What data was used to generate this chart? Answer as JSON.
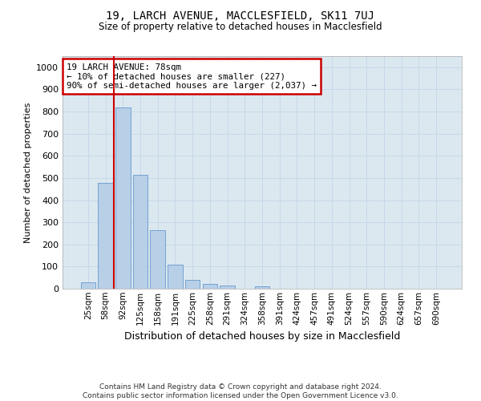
{
  "title": "19, LARCH AVENUE, MACCLESFIELD, SK11 7UJ",
  "subtitle": "Size of property relative to detached houses in Macclesfield",
  "xlabel": "Distribution of detached houses by size in Macclesfield",
  "ylabel": "Number of detached properties",
  "footer_line1": "Contains HM Land Registry data © Crown copyright and database right 2024.",
  "footer_line2": "Contains public sector information licensed under the Open Government Licence v3.0.",
  "bar_labels": [
    "25sqm",
    "58sqm",
    "92sqm",
    "125sqm",
    "158sqm",
    "191sqm",
    "225sqm",
    "258sqm",
    "291sqm",
    "324sqm",
    "358sqm",
    "391sqm",
    "424sqm",
    "457sqm",
    "491sqm",
    "524sqm",
    "557sqm",
    "590sqm",
    "624sqm",
    "657sqm",
    "690sqm"
  ],
  "bar_values": [
    30,
    478,
    820,
    515,
    265,
    110,
    40,
    20,
    13,
    0,
    10,
    0,
    0,
    0,
    0,
    0,
    0,
    0,
    0,
    0,
    0
  ],
  "bar_color": "#b8cfe8",
  "bar_edge_color": "#6699cc",
  "grid_color": "#c8d8ea",
  "bg_color": "#dce8f0",
  "annotation_box_text": "19 LARCH AVENUE: 78sqm\n← 10% of detached houses are smaller (227)\n90% of semi-detached houses are larger (2,037) →",
  "annotation_box_color": "#cc0000",
  "vline_x": 1.5,
  "vline_color": "#cc0000",
  "ylim": [
    0,
    1050
  ],
  "yticks": [
    0,
    100,
    200,
    300,
    400,
    500,
    600,
    700,
    800,
    900,
    1000
  ]
}
